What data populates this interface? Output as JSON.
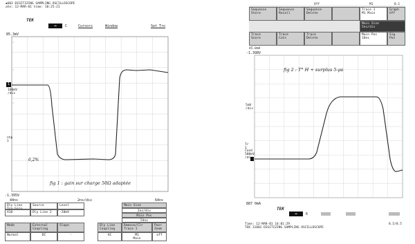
{
  "left_scope": {
    "header_line1": "▪602 DIGITIZING SAMPLING OSCILLOSCOPE",
    "header_line2": "ate: 12-MAR-01 time: 10:25:21",
    "logo": "TEK",
    "toolbar": {
      "label_c": "C",
      "cursors": "Cursors",
      "window": "Window",
      "setting": "Set Tro"
    },
    "top_value": "85.3mV",
    "ch_label": "1",
    "trig_label": "T",
    "scale": "100mV\n/div",
    "ntp": "ntp\n1",
    "bottom_value": "-1.395V",
    "annotation_pct": "6,2%",
    "annotation_text": "fig 1 : gain sur charge 50Ω adaptée",
    "time_left": "44ns",
    "time_div": "2ns/div",
    "time_right": "64ns",
    "menu": {
      "row1": [
        {
          "label": "Dly Line\nTrg Gain"
        },
        {
          "label": "Source"
        },
        {
          "label": "Level"
        },
        {
          "label": "Main Size"
        }
      ],
      "row1_values": [
        {
          "label": "X10"
        },
        {
          "label": "Dly Line 2"
        },
        {
          "label": "-28mV"
        },
        {
          "label": "2ns/div"
        }
      ],
      "main_pos_label": "Main Pos",
      "main_pos_value": "54ns",
      "row2": [
        {
          "label": "Mode"
        },
        {
          "label": "External\nCoupling"
        },
        {
          "label": "Slope"
        },
        {
          "label": "Dly Line\nCoupling"
        },
        {
          "label": "Remove/Clr\nTrace 1"
        },
        {
          "label": "Panr\nZoom"
        }
      ],
      "row2_values": [
        {
          "label": "Normal"
        },
        {
          "label": "DC"
        },
        {
          "label": "-"
        },
        {
          "label": "AC"
        },
        {
          "label": "M1\nMain"
        },
        {
          "label": "off"
        }
      ]
    }
  },
  "right_scope": {
    "menu_row1": [
      "Sequence\nStore",
      "Sequence\nRecall",
      "Sequence\nDelete",
      "",
      "Trace 1\nM1 Main",
      "Graph\nOff"
    ],
    "menu_row1_small": [
      "",
      "",
      "Off",
      "",
      "M1",
      "0.1"
    ],
    "menu_row2": [
      "",
      "",
      "",
      "",
      "Main Size\n5ns/div",
      ""
    ],
    "menu_row3": [
      "Trace\nScore",
      "Trace\nCuts",
      "Trace\nDelete",
      "",
      "Main Pos\n10ns",
      ""
    ],
    "menu_row3_small": [
      "45.0mV",
      "",
      "",
      "",
      "",
      "Sig\nPos"
    ],
    "top_value": "-1.398V",
    "annotation_text": "fig 2 : T° H + surplus 5-μs",
    "scale": "5mV\n/div",
    "ch_label": "Tr\n1",
    "cond": "Cond\n500mV\n/div",
    "bottom_value": "887 0mA",
    "logo": "TEK",
    "bottom_bar_label": "6",
    "footer_line1": "Time: 12-MAR-01 14:01:29",
    "footer_line2": "TEK 11801 DIGITIZING SAMPLING OSCILLOSCOPE",
    "footer_right": "8.5/8.5"
  }
}
